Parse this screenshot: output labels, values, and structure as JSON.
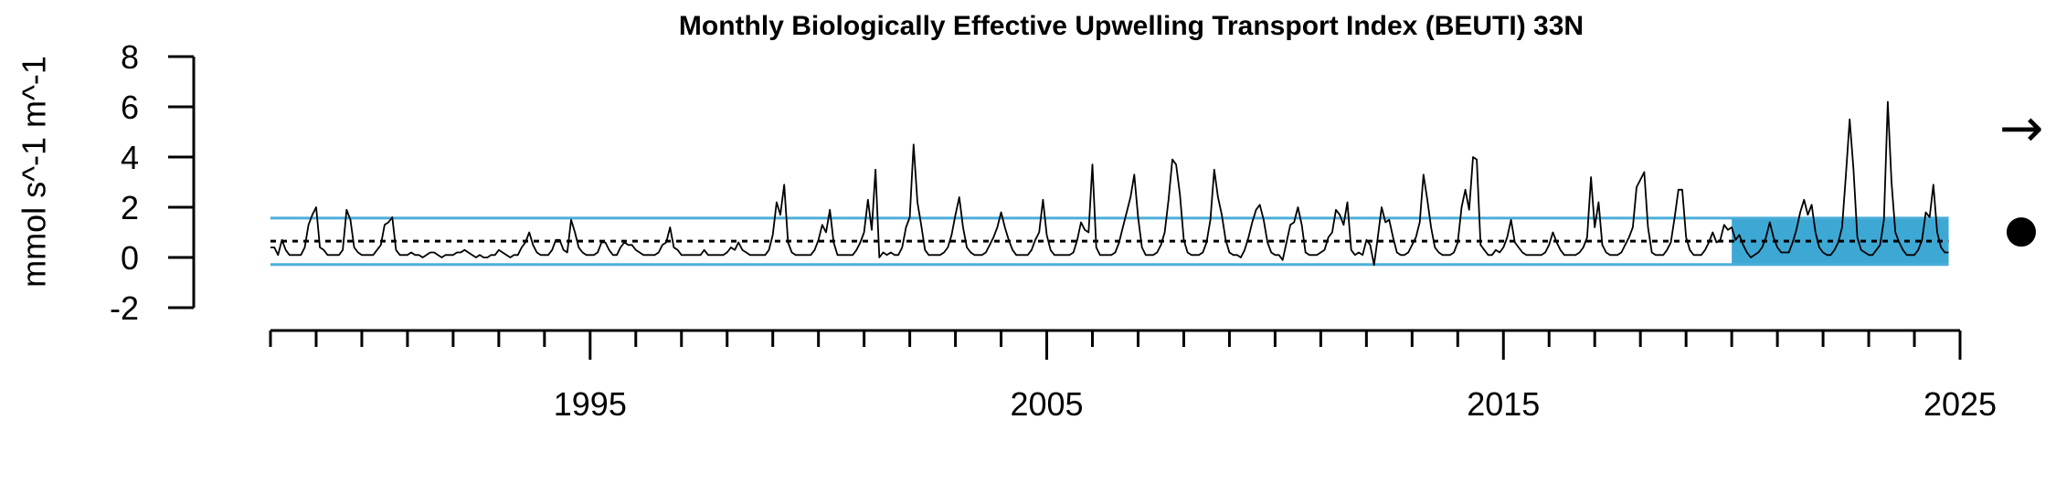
{
  "chart_data": {
    "type": "line",
    "title": "Monthly Biologically Effective Upwelling Transport Index (BEUTI) 33N",
    "ylabel": "mmol s^-1 m^-1",
    "xlabel": "",
    "ylim": [
      -2,
      8
    ],
    "yticks": [
      "8",
      "6",
      "4",
      "2",
      "0",
      "-2"
    ],
    "xlim": [
      1988,
      2025
    ],
    "xtick_labels": [
      "1995",
      "2005",
      "2015",
      "2025"
    ],
    "mean": 0.65,
    "sd_upper": 1.57,
    "sd_lower": -0.28,
    "recent_period": [
      2020.0,
      2024.75
    ],
    "colors": {
      "line": "#000000",
      "band": "#4BAED9",
      "shade": "#3EA8D4",
      "mean": "#000000"
    },
    "trend_symbol": "→",
    "mean_symbol": "●",
    "series": [
      {
        "x_start": 1988.0,
        "step_per_month": 0.0833333,
        "values": [
          0.4,
          0.4,
          0.1,
          0.7,
          0.3,
          0.1,
          0.1,
          0.1,
          0.1,
          0.4,
          1.3,
          1.7,
          2.0,
          0.4,
          0.3,
          0.1,
          0.1,
          0.1,
          0.1,
          0.3,
          1.9,
          1.5,
          0.4,
          0.2,
          0.1,
          0.1,
          0.1,
          0.1,
          0.3,
          0.5,
          1.3,
          1.4,
          1.6,
          0.3,
          0.1,
          0.1,
          0.1,
          0.2,
          0.1,
          0.1,
          0.0,
          0.1,
          0.2,
          0.2,
          0.1,
          0.0,
          0.1,
          0.1,
          0.1,
          0.2,
          0.2,
          0.3,
          0.2,
          0.1,
          0.0,
          0.1,
          0.0,
          0.0,
          0.1,
          0.1,
          0.3,
          0.2,
          0.1,
          0.0,
          0.1,
          0.1,
          0.4,
          0.6,
          1.0,
          0.5,
          0.2,
          0.1,
          0.1,
          0.1,
          0.3,
          0.7,
          0.7,
          0.3,
          0.2,
          1.5,
          1.0,
          0.4,
          0.2,
          0.1,
          0.1,
          0.1,
          0.2,
          0.6,
          0.6,
          0.3,
          0.1,
          0.1,
          0.4,
          0.6,
          0.5,
          0.5,
          0.3,
          0.2,
          0.1,
          0.1,
          0.1,
          0.1,
          0.2,
          0.5,
          0.6,
          1.2,
          0.4,
          0.3,
          0.1,
          0.1,
          0.1,
          0.1,
          0.1,
          0.1,
          0.3,
          0.1,
          0.1,
          0.1,
          0.1,
          0.1,
          0.2,
          0.4,
          0.3,
          0.6,
          0.3,
          0.2,
          0.1,
          0.1,
          0.1,
          0.1,
          0.1,
          0.3,
          0.9,
          2.2,
          1.7,
          2.9,
          0.6,
          0.2,
          0.1,
          0.1,
          0.1,
          0.1,
          0.1,
          0.3,
          0.7,
          1.3,
          1.0,
          1.9,
          0.6,
          0.1,
          0.1,
          0.1,
          0.1,
          0.1,
          0.3,
          0.6,
          1.0,
          2.3,
          1.1,
          3.5,
          0.0,
          0.2,
          0.1,
          0.2,
          0.1,
          0.1,
          0.4,
          1.2,
          1.6,
          4.5,
          2.2,
          1.3,
          0.3,
          0.1,
          0.1,
          0.1,
          0.1,
          0.2,
          0.4,
          0.9,
          1.7,
          2.4,
          1.2,
          0.4,
          0.2,
          0.1,
          0.1,
          0.1,
          0.2,
          0.5,
          0.8,
          1.2,
          1.8,
          1.2,
          0.7,
          0.3,
          0.1,
          0.1,
          0.1,
          0.1,
          0.3,
          0.7,
          1.0,
          2.3,
          0.9,
          0.3,
          0.1,
          0.1,
          0.1,
          0.1,
          0.1,
          0.2,
          0.7,
          1.4,
          1.1,
          1.0,
          3.7,
          0.4,
          0.1,
          0.1,
          0.1,
          0.1,
          0.2,
          0.6,
          1.2,
          1.8,
          2.4,
          3.3,
          1.6,
          0.4,
          0.1,
          0.1,
          0.1,
          0.2,
          0.5,
          1.0,
          2.3,
          3.9,
          3.7,
          2.5,
          0.7,
          0.2,
          0.1,
          0.1,
          0.1,
          0.2,
          0.6,
          1.5,
          3.5,
          2.4,
          1.7,
          0.7,
          0.2,
          0.1,
          0.1,
          0.0,
          0.3,
          0.8,
          1.4,
          1.9,
          2.1,
          1.5,
          0.6,
          0.2,
          0.1,
          0.1,
          -0.1,
          0.6,
          1.3,
          1.4,
          2.0,
          1.3,
          0.2,
          0.1,
          0.1,
          0.1,
          0.2,
          0.3,
          0.8,
          1.0,
          1.9,
          1.7,
          1.3,
          2.2,
          0.3,
          0.1,
          0.2,
          0.1,
          0.7,
          0.5,
          -0.3,
          0.8,
          2.0,
          1.4,
          1.5,
          0.8,
          0.2,
          0.1,
          0.1,
          0.2,
          0.5,
          0.8,
          1.4,
          3.3,
          2.3,
          1.2,
          0.4,
          0.2,
          0.1,
          0.1,
          0.1,
          0.2,
          0.6,
          2.0,
          2.7,
          1.9,
          4.0,
          3.9,
          0.5,
          0.3,
          0.1,
          0.1,
          0.3,
          0.2,
          0.4,
          0.8,
          1.5,
          0.6,
          0.4,
          0.2,
          0.1,
          0.1,
          0.1,
          0.1,
          0.1,
          0.2,
          0.5,
          1.0,
          0.6,
          0.3,
          0.1,
          0.1,
          0.1,
          0.1,
          0.2,
          0.4,
          0.8,
          3.2,
          1.2,
          2.2,
          0.5,
          0.2,
          0.1,
          0.1,
          0.1,
          0.2,
          0.5,
          0.8,
          1.2,
          2.8,
          3.1,
          3.4,
          1.2,
          0.2,
          0.1,
          0.1,
          0.1,
          0.3,
          0.6,
          1.6,
          2.7,
          2.7,
          0.8,
          0.3,
          0.1,
          0.1,
          0.1,
          0.3,
          0.6,
          1.0,
          0.6,
          0.7,
          1.3,
          1.1,
          1.2,
          0.7,
          0.9,
          0.5,
          0.2,
          0.0,
          0.1,
          0.2,
          0.4,
          0.8,
          1.4,
          0.8,
          0.4,
          0.2,
          0.2,
          0.2,
          0.6,
          1.1,
          1.8,
          2.3,
          1.7,
          2.1,
          1.0,
          0.4,
          0.2,
          0.1,
          0.1,
          0.3,
          0.6,
          1.2,
          3.3,
          5.5,
          3.5,
          0.8,
          0.3,
          0.2,
          0.1,
          0.1,
          0.3,
          0.5,
          1.5,
          6.2,
          3.0,
          1.0,
          0.6,
          0.3,
          0.1,
          0.1,
          0.1,
          0.3,
          0.7,
          1.8,
          1.6,
          2.9,
          1.0,
          0.4,
          0.2,
          0.2
        ]
      }
    ]
  }
}
